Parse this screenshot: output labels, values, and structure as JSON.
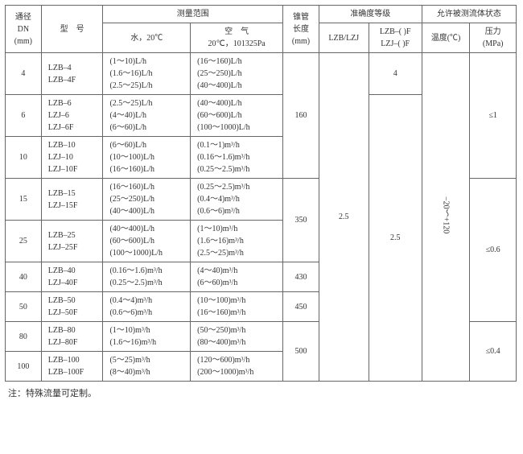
{
  "headers": {
    "dn": "通径\nDN\n(mm)",
    "model": "型　号",
    "range_group": "测量范围",
    "water": "水，20℃",
    "air": "空　气\n20℃，101325Pa",
    "tube_len": "锥管\n长度\n(mm)",
    "accuracy_group": "准确度等级",
    "acc1": "LZB/LZJ",
    "acc2": "LZB–( )F\nLZJ–( )F",
    "fluid_group": "允许被测流体状态",
    "temp": "温度(℃)",
    "pressure": "压力\n(MPa)"
  },
  "rows": [
    {
      "dn": "4",
      "models": [
        "LZB–4",
        "LZB–4F"
      ],
      "water": [
        "(1～10)L/h",
        "(1.6～16)L/h",
        "(2.5～25)L/h"
      ],
      "air": [
        "(16～160)L/h",
        "(25～250)L/h",
        "(40～400)L/h"
      ]
    },
    {
      "dn": "6",
      "models": [
        "LZB–6",
        "LZJ–6",
        "LZJ–6F"
      ],
      "water": [
        "(2.5～25)L/h",
        "(4～40)L/h",
        "(6～60)L/h"
      ],
      "air": [
        "(40～400)L/h",
        "(60～600)L/h",
        "(100～1000)L/h"
      ]
    },
    {
      "dn": "10",
      "models": [
        "LZB–10",
        "LZJ–10",
        "LZJ–10F"
      ],
      "water": [
        "(6～60)L/h",
        "(10～100)L/h",
        "(16～160)L/h"
      ],
      "air": [
        "(0.1～1)m³/h",
        "(0.16～1.6)m³/h",
        "(0.25～2.5)m³/h"
      ]
    },
    {
      "dn": "15",
      "models": [
        "LZB–15",
        "LZJ–15F"
      ],
      "water": [
        "(16～160)L/h",
        "(25～250)L/h",
        "(40～400)L/h"
      ],
      "air": [
        "(0.25～2.5)m³/h",
        "(0.4～4)m³/h",
        "(0.6～6)m³/h"
      ]
    },
    {
      "dn": "25",
      "models": [
        "LZB–25",
        "LZJ–25F"
      ],
      "water": [
        "(40～400)L/h",
        "(60～600)L/h",
        "(100～1000)L/h"
      ],
      "air": [
        "(1～10)m³/h",
        "(1.6～16)m³/h",
        "(2.5～25)m³/h"
      ]
    },
    {
      "dn": "40",
      "models": [
        "LZB–40",
        "LZJ–40F"
      ],
      "water": [
        "(0.16～1.6)m³/h",
        "(0.25～2.5)m³/h"
      ],
      "air": [
        "(4～40)m³/h",
        "(6～60)m³/h"
      ]
    },
    {
      "dn": "50",
      "models": [
        "LZB–50",
        "LZJ–50F"
      ],
      "water": [
        "(0.4～4)m³/h",
        "(0.6～6)m³/h"
      ],
      "air": [
        "(10～100)m³/h",
        "(16～160)m³/h"
      ]
    },
    {
      "dn": "80",
      "models": [
        "LZB–80",
        "LZJ–80F"
      ],
      "water": [
        "(1～10)m³/h",
        "(1.6～16)m³/h"
      ],
      "air": [
        "(50～250)m³/h",
        "(80～400)m³/h"
      ]
    },
    {
      "dn": "100",
      "models": [
        "LZB–100",
        "LZB–100F"
      ],
      "water": [
        "(5～25)m³/h",
        "(8～40)m³/h"
      ],
      "air": [
        "(120～600)m³/h",
        "(200～1000)m³/h"
      ]
    }
  ],
  "tube_len": {
    "r0_3": "160",
    "r3_2": "350",
    "r5": "430",
    "r6": "450",
    "r7_2": "500"
  },
  "acc1": {
    "top": "",
    "rest": "2.5"
  },
  "acc2": {
    "r0": "4",
    "rest": "2.5"
  },
  "temp_all": "−20～+120",
  "pressure": {
    "p0_3": "≤1",
    "p3_4": "≤0.6",
    "p7_2": "≤0.4"
  },
  "note": "注：特殊流量可定制。"
}
